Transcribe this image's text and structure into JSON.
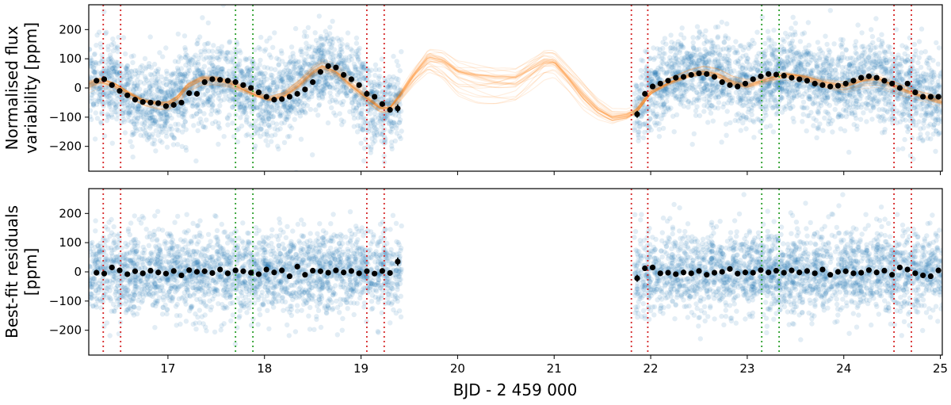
{
  "chart_data": [
    {
      "panel": "top",
      "type": "scatter",
      "ylabel": [
        "Normalised flux",
        "variability [ppm]"
      ],
      "xlabel": "",
      "xlim": [
        16.18,
        25.02
      ],
      "ylim": [
        -285,
        285
      ],
      "xticks": [
        17,
        18,
        19,
        20,
        21,
        22,
        23,
        24,
        25
      ],
      "yticks": [
        -200,
        -100,
        0,
        100,
        200
      ],
      "data_windows": [
        [
          16.18,
          19.42
        ],
        [
          21.83,
          25.02
        ]
      ],
      "raw_scatter_sigma_ppm": 70,
      "gp_model": {
        "color": "#ff7f0e",
        "n_samples": 30,
        "x": [
          16.18,
          16.3,
          16.45,
          16.6,
          16.75,
          16.9,
          17.0,
          17.1,
          17.2,
          17.35,
          17.5,
          17.65,
          17.75,
          17.9,
          18.05,
          18.2,
          18.35,
          18.5,
          18.6,
          18.75,
          18.9,
          19.05,
          19.2,
          19.3,
          19.4,
          19.55,
          19.7,
          19.85,
          20.0,
          20.2,
          20.4,
          20.6,
          20.75,
          20.9,
          21.0,
          21.15,
          21.3,
          21.45,
          21.6,
          21.75,
          21.85,
          22.0,
          22.2,
          22.4,
          22.55,
          22.7,
          22.85,
          23.0,
          23.2,
          23.4,
          23.6,
          23.8,
          24.0,
          24.2,
          24.35,
          24.5,
          24.65,
          24.8,
          25.02
        ],
        "y": [
          10,
          25,
          10,
          -20,
          -45,
          -55,
          -55,
          -35,
          5,
          30,
          28,
          15,
          0,
          -22,
          -38,
          -25,
          10,
          55,
          75,
          55,
          10,
          -30,
          -70,
          -70,
          -30,
          40,
          95,
          80,
          40,
          25,
          20,
          25,
          60,
          95,
          95,
          40,
          -20,
          -70,
          -100,
          -95,
          -80,
          -15,
          20,
          45,
          55,
          45,
          20,
          10,
          30,
          45,
          35,
          15,
          5,
          25,
          30,
          10,
          -10,
          -25,
          -45
        ],
        "spread": [
          18,
          16,
          14,
          14,
          14,
          14,
          14,
          14,
          14,
          14,
          14,
          14,
          14,
          14,
          14,
          14,
          14,
          14,
          14,
          14,
          14,
          14,
          14,
          14,
          18,
          30,
          42,
          48,
          50,
          50,
          48,
          48,
          48,
          45,
          40,
          38,
          40,
          30,
          22,
          16,
          14,
          14,
          14,
          14,
          14,
          14,
          14,
          14,
          14,
          14,
          14,
          14,
          14,
          14,
          14,
          14,
          14,
          14,
          18
        ]
      },
      "binned": {
        "x": [
          16.26,
          16.34,
          16.42,
          16.5,
          16.58,
          16.66,
          16.74,
          16.82,
          16.9,
          16.98,
          17.06,
          17.14,
          17.22,
          17.3,
          17.38,
          17.46,
          17.54,
          17.62,
          17.7,
          17.78,
          17.86,
          17.94,
          18.02,
          18.1,
          18.18,
          18.26,
          18.34,
          18.42,
          18.5,
          18.58,
          18.66,
          18.74,
          18.82,
          18.9,
          18.98,
          19.06,
          19.14,
          19.22,
          19.3,
          19.38,
          21.86,
          21.94,
          22.02,
          22.1,
          22.18,
          22.26,
          22.34,
          22.42,
          22.5,
          22.58,
          22.66,
          22.74,
          22.82,
          22.9,
          22.98,
          23.06,
          23.14,
          23.22,
          23.3,
          23.38,
          23.46,
          23.54,
          23.62,
          23.7,
          23.78,
          23.86,
          23.94,
          24.02,
          24.1,
          24.18,
          24.26,
          24.34,
          24.42,
          24.5,
          24.58,
          24.66,
          24.74,
          24.82,
          24.9,
          24.98
        ],
        "y": [
          25,
          30,
          10,
          -10,
          -25,
          -40,
          -48,
          -50,
          -52,
          -62,
          -58,
          -50,
          -18,
          -20,
          20,
          30,
          28,
          25,
          20,
          10,
          0,
          -15,
          -30,
          -40,
          -38,
          -30,
          -20,
          -5,
          20,
          55,
          75,
          70,
          45,
          30,
          10,
          -20,
          -30,
          -55,
          -75,
          -70,
          -90,
          -20,
          5,
          15,
          25,
          35,
          38,
          45,
          50,
          48,
          38,
          20,
          10,
          5,
          15,
          30,
          40,
          48,
          46,
          42,
          35,
          30,
          25,
          15,
          10,
          5,
          8,
          15,
          25,
          35,
          40,
          35,
          25,
          15,
          0,
          15,
          -15,
          -30,
          -30,
          -30
        ],
        "yerr": [
          9,
          9,
          9,
          9,
          9,
          9,
          9,
          9,
          9,
          9,
          9,
          9,
          9,
          9,
          9,
          9,
          9,
          9,
          9,
          9,
          9,
          9,
          9,
          9,
          9,
          9,
          9,
          9,
          9,
          9,
          9,
          9,
          9,
          9,
          9,
          9,
          9,
          9,
          9,
          14,
          12,
          9,
          9,
          9,
          9,
          9,
          9,
          9,
          9,
          9,
          9,
          9,
          9,
          9,
          9,
          9,
          9,
          9,
          9,
          9,
          9,
          9,
          9,
          9,
          9,
          9,
          9,
          9,
          9,
          9,
          9,
          9,
          9,
          9,
          9,
          9,
          9,
          9,
          9,
          9
        ]
      }
    },
    {
      "panel": "bottom",
      "type": "scatter",
      "ylabel": [
        "Best-fit residuals",
        "[ppm]"
      ],
      "xlabel": "BJD - 2 459 000",
      "xlim": [
        16.18,
        25.02
      ],
      "ylim": [
        -285,
        285
      ],
      "xticks": [
        17,
        18,
        19,
        20,
        21,
        22,
        23,
        24,
        25
      ],
      "yticks": [
        -200,
        -100,
        0,
        100,
        200
      ],
      "data_windows": [
        [
          16.18,
          19.42
        ],
        [
          21.83,
          25.02
        ]
      ],
      "raw_scatter_sigma_ppm": 70,
      "binned": {
        "x": [
          16.26,
          16.34,
          16.42,
          16.5,
          16.58,
          16.66,
          16.74,
          16.82,
          16.9,
          16.98,
          17.06,
          17.14,
          17.22,
          17.3,
          17.38,
          17.46,
          17.54,
          17.62,
          17.7,
          17.78,
          17.86,
          17.94,
          18.02,
          18.1,
          18.18,
          18.26,
          18.34,
          18.42,
          18.5,
          18.58,
          18.66,
          18.74,
          18.82,
          18.9,
          18.98,
          19.06,
          19.14,
          19.22,
          19.3,
          19.38,
          21.86,
          21.94,
          22.02,
          22.1,
          22.18,
          22.26,
          22.34,
          22.42,
          22.5,
          22.58,
          22.66,
          22.74,
          22.82,
          22.9,
          22.98,
          23.06,
          23.14,
          23.22,
          23.3,
          23.38,
          23.46,
          23.54,
          23.62,
          23.7,
          23.78,
          23.86,
          23.94,
          24.02,
          24.1,
          24.18,
          24.26,
          24.34,
          24.42,
          24.5,
          24.58,
          24.66,
          24.74,
          24.82,
          24.9,
          24.98
        ],
        "y": [
          -3,
          -6,
          15,
          5,
          -8,
          2,
          -5,
          4,
          -2,
          -6,
          3,
          -12,
          6,
          0,
          2,
          -4,
          8,
          -5,
          5,
          2,
          -3,
          -8,
          8,
          -2,
          5,
          -15,
          18,
          -10,
          4,
          2,
          -3,
          5,
          -2,
          3,
          -5,
          2,
          -6,
          3,
          -4,
          35,
          -22,
          12,
          15,
          -5,
          -3,
          -8,
          -2,
          -5,
          3,
          -10,
          -3,
          0,
          10,
          -6,
          -2,
          -3,
          6,
          -2,
          4,
          -3,
          5,
          -2,
          3,
          -5,
          8,
          -10,
          0,
          2,
          -5,
          -3,
          6,
          -2,
          4,
          -10,
          15,
          8,
          -5,
          -12,
          -15,
          5
        ],
        "yerr": [
          9,
          9,
          9,
          9,
          9,
          9,
          9,
          9,
          9,
          9,
          9,
          9,
          9,
          9,
          9,
          9,
          9,
          9,
          9,
          9,
          9,
          9,
          9,
          9,
          9,
          9,
          9,
          9,
          9,
          9,
          9,
          9,
          9,
          9,
          9,
          9,
          9,
          9,
          9,
          14,
          12,
          9,
          9,
          9,
          9,
          9,
          9,
          9,
          9,
          9,
          9,
          9,
          9,
          9,
          9,
          9,
          9,
          9,
          9,
          9,
          9,
          9,
          9,
          9,
          9,
          9,
          9,
          9,
          9,
          9,
          9,
          9,
          9,
          9,
          9,
          9,
          9,
          9,
          9,
          9
        ]
      }
    }
  ],
  "vertical_lines": {
    "red": {
      "color": "#d62728",
      "x": [
        16.33,
        16.51,
        19.06,
        19.24,
        21.8,
        21.97,
        24.52,
        24.7
      ]
    },
    "green": {
      "color": "#2ca02c",
      "x": [
        17.7,
        17.88,
        23.15,
        23.33
      ]
    }
  }
}
